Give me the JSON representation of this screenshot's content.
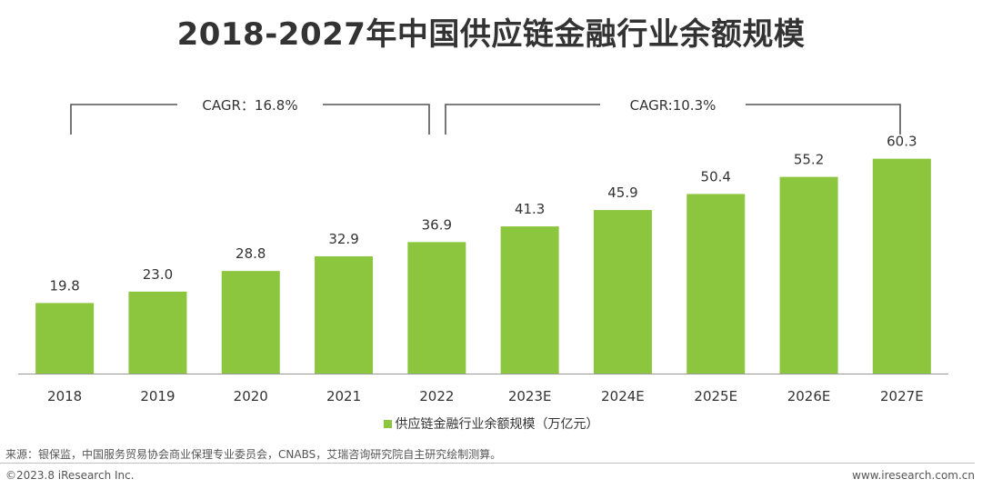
{
  "title": "2018-2027年中国供应链金融行业余额规模",
  "chart_data": {
    "type": "bar",
    "title": "2018-2027年中国供应链金融行业余额规模",
    "categories": [
      "2018",
      "2019",
      "2020",
      "2021",
      "2022",
      "2023E",
      "2024E",
      "2025E",
      "2026E",
      "2027E"
    ],
    "series": [
      {
        "name": "供应链金融行业余额规模（万亿元）",
        "values": [
          19.8,
          23.0,
          28.8,
          32.9,
          36.9,
          41.3,
          45.9,
          50.4,
          55.2,
          60.3
        ],
        "labels": [
          "19.8",
          "23.0",
          "28.8",
          "32.9",
          "36.9",
          "41.3",
          "45.9",
          "50.4",
          "55.2",
          "60.3"
        ]
      }
    ],
    "ylim": [
      0,
      65
    ],
    "xlabel": "",
    "ylabel": "",
    "grid": false,
    "legend_position": "bottom",
    "annotations": [
      {
        "text": "CAGR：16.8%",
        "from": "2018",
        "to": "2022"
      },
      {
        "text": "CAGR:10.3%",
        "from": "2022",
        "to": "2027E"
      }
    ]
  },
  "colors": {
    "bar": "#8CC63F",
    "text": "#333333",
    "axis": "#999999",
    "bracket": "#555555"
  },
  "legend": {
    "label": "供应链金融行业余额规模（万亿元）"
  },
  "footer": {
    "source": "来源：银保监，中国服务贸易协会商业保理专业委员会，CNABS，艾瑞咨询研究院自主研究绘制测算。",
    "copyright": "©2023.8 iResearch Inc.",
    "website": "www.iresearch.com.cn"
  }
}
